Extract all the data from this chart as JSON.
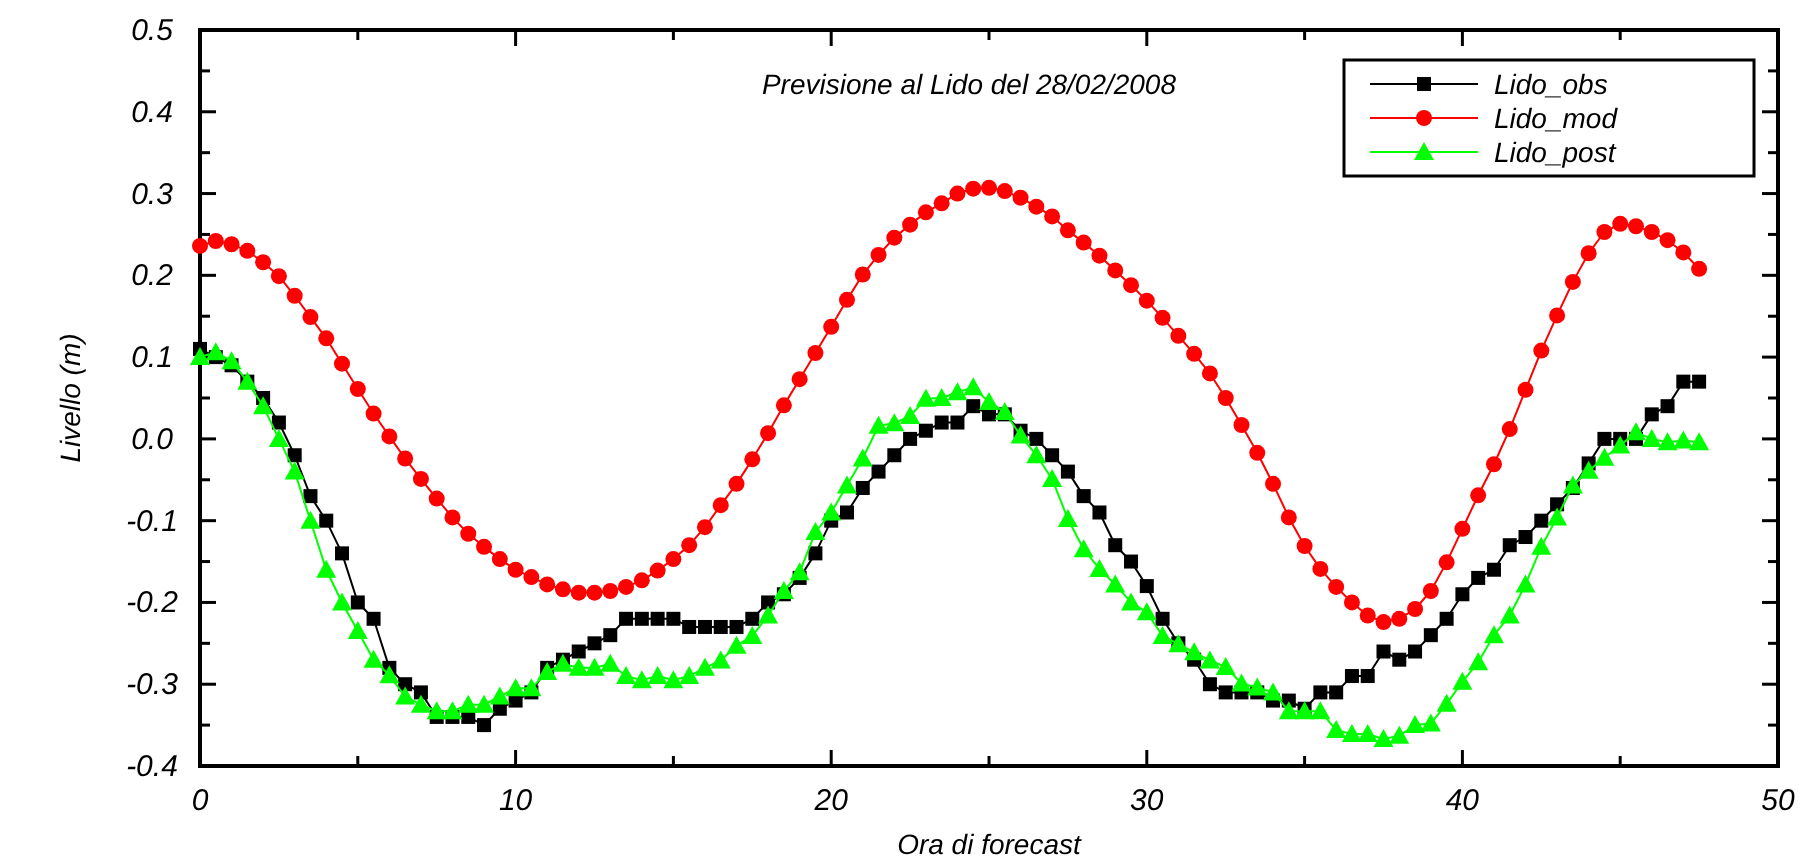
{
  "chart_data": {
    "type": "line",
    "title": "Previsione al Lido del 28/02/2008",
    "xlabel": "Ora di forecast",
    "ylabel": "Livello (m)",
    "x": [
      0,
      0.5,
      1,
      1.5,
      2,
      2.5,
      3,
      3.5,
      4,
      4.5,
      5,
      5.5,
      6,
      6.5,
      7,
      7.5,
      8,
      8.5,
      9,
      9.5,
      10,
      10.5,
      11,
      11.5,
      12,
      12.5,
      13,
      13.5,
      14,
      14.5,
      15,
      15.5,
      16,
      16.5,
      17,
      17.5,
      18,
      18.5,
      19,
      19.5,
      20,
      20.5,
      21,
      21.5,
      22,
      22.5,
      23,
      23.5,
      24,
      24.5,
      25,
      25.5,
      26,
      26.5,
      27,
      27.5,
      28,
      28.5,
      29,
      29.5,
      30,
      30.5,
      31,
      31.5,
      32,
      32.5,
      33,
      33.5,
      34,
      34.5,
      35,
      35.5,
      36,
      36.5,
      37,
      37.5,
      38,
      38.5,
      39,
      39.5,
      40,
      40.5,
      41,
      41.5,
      42,
      42.5,
      43,
      43.5,
      44,
      44.5,
      45,
      45.5,
      46,
      46.5,
      47,
      47.5
    ],
    "series": [
      {
        "name": "Lido_obs",
        "color": "#000000",
        "marker": "square",
        "values": [
          0.11,
          0.1,
          0.09,
          0.07,
          0.05,
          0.02,
          -0.02,
          -0.07,
          -0.1,
          -0.14,
          -0.2,
          -0.22,
          -0.28,
          -0.3,
          -0.31,
          -0.34,
          -0.34,
          -0.34,
          -0.35,
          -0.33,
          -0.32,
          -0.31,
          -0.28,
          -0.27,
          -0.26,
          -0.25,
          -0.24,
          -0.22,
          -0.22,
          -0.22,
          -0.22,
          -0.23,
          -0.23,
          -0.23,
          -0.23,
          -0.22,
          -0.2,
          -0.19,
          -0.17,
          -0.14,
          -0.1,
          -0.09,
          -0.06,
          -0.04,
          -0.02,
          0,
          0.01,
          0.02,
          0.02,
          0.04,
          0.03,
          0.03,
          0.01,
          0,
          -0.02,
          -0.04,
          -0.07,
          -0.09,
          -0.13,
          -0.15,
          -0.18,
          -0.22,
          -0.25,
          -0.27,
          -0.3,
          -0.31,
          -0.31,
          -0.31,
          -0.32,
          -0.32,
          -0.33,
          -0.31,
          -0.31,
          -0.29,
          -0.29,
          -0.26,
          -0.27,
          -0.26,
          -0.24,
          -0.22,
          -0.19,
          -0.17,
          -0.16,
          -0.13,
          -0.12,
          -0.1,
          -0.08,
          -0.06,
          -0.03,
          0,
          0,
          0,
          0.03,
          0.04,
          0.07,
          0.07
        ]
      },
      {
        "name": "Lido_mod",
        "color": "#ff0000",
        "marker": "circle",
        "values": [
          0.236,
          0.242,
          0.238,
          0.23,
          0.216,
          0.199,
          0.175,
          0.149,
          0.123,
          0.092,
          0.061,
          0.031,
          0.003,
          -0.024,
          -0.049,
          -0.073,
          -0.096,
          -0.116,
          -0.132,
          -0.147,
          -0.16,
          -0.169,
          -0.178,
          -0.184,
          -0.188,
          -0.188,
          -0.186,
          -0.181,
          -0.173,
          -0.161,
          -0.147,
          -0.13,
          -0.108,
          -0.081,
          -0.055,
          -0.025,
          0.007,
          0.041,
          0.073,
          0.105,
          0.137,
          0.17,
          0.201,
          0.225,
          0.246,
          0.262,
          0.277,
          0.288,
          0.3,
          0.306,
          0.307,
          0.303,
          0.295,
          0.284,
          0.272,
          0.255,
          0.24,
          0.224,
          0.206,
          0.188,
          0.169,
          0.148,
          0.126,
          0.104,
          0.08,
          0.05,
          0.017,
          -0.017,
          -0.055,
          -0.096,
          -0.131,
          -0.159,
          -0.181,
          -0.2,
          -0.216,
          -0.224,
          -0.22,
          -0.208,
          -0.186,
          -0.151,
          -0.11,
          -0.069,
          -0.031,
          0.012,
          0.06,
          0.108,
          0.151,
          0.192,
          0.227,
          0.253,
          0.263,
          0.26,
          0.253,
          0.243,
          0.228,
          0.208
        ]
      },
      {
        "name": "Lido_post",
        "color": "#00ff00",
        "marker": "triangle",
        "values": [
          0.1,
          0.106,
          0.095,
          0.07,
          0.04,
          0,
          -0.04,
          -0.1,
          -0.16,
          -0.2,
          -0.235,
          -0.27,
          -0.289,
          -0.315,
          -0.325,
          -0.333,
          -0.333,
          -0.325,
          -0.325,
          -0.315,
          -0.305,
          -0.305,
          -0.285,
          -0.275,
          -0.28,
          -0.28,
          -0.275,
          -0.29,
          -0.295,
          -0.29,
          -0.295,
          -0.29,
          -0.28,
          -0.271,
          -0.253,
          -0.241,
          -0.216,
          -0.186,
          -0.163,
          -0.114,
          -0.09,
          -0.057,
          -0.024,
          0.016,
          0.019,
          0.028,
          0.049,
          0.05,
          0.057,
          0.063,
          0.045,
          0.033,
          0.004,
          -0.02,
          -0.049,
          -0.098,
          -0.135,
          -0.159,
          -0.178,
          -0.2,
          -0.212,
          -0.241,
          -0.251,
          -0.261,
          -0.271,
          -0.279,
          -0.299,
          -0.304,
          -0.31,
          -0.333,
          -0.333,
          -0.333,
          -0.356,
          -0.361,
          -0.361,
          -0.367,
          -0.363,
          -0.35,
          -0.348,
          -0.324,
          -0.297,
          -0.273,
          -0.24,
          -0.216,
          -0.178,
          -0.132,
          -0.096,
          -0.057,
          -0.039,
          -0.023,
          -0.008,
          0.008,
          0,
          -0.004,
          -0.002,
          -0.004
        ]
      }
    ],
    "xlim": [
      0,
      50
    ],
    "xticks": [
      0,
      {
        "value": 5,
        "label": null
      },
      10,
      {
        "value": 15,
        "label": null
      },
      20,
      {
        "value": 25,
        "label": null
      },
      30,
      {
        "value": 35,
        "label": null
      },
      40,
      {
        "value": 45,
        "label": null
      },
      50
    ],
    "ylim": [
      -0.4,
      0.5
    ],
    "yticks": [
      -0.4,
      {
        "value": -0.35,
        "label": null
      },
      -0.3,
      {
        "value": -0.25,
        "label": null
      },
      -0.2,
      {
        "value": -0.15,
        "label": null
      },
      -0.1,
      {
        "value": -0.05,
        "label": null
      },
      {
        "value": 0,
        "label": "0.0"
      },
      {
        "value": 0.05,
        "label": null
      },
      0.1,
      {
        "value": 0.15,
        "label": null
      },
      0.2,
      {
        "value": 0.25,
        "label": null
      },
      0.3,
      {
        "value": 0.35,
        "label": null
      },
      0.4,
      {
        "value": 0.45,
        "label": null
      },
      0.5
    ],
    "grid": false,
    "legend": "top right"
  }
}
